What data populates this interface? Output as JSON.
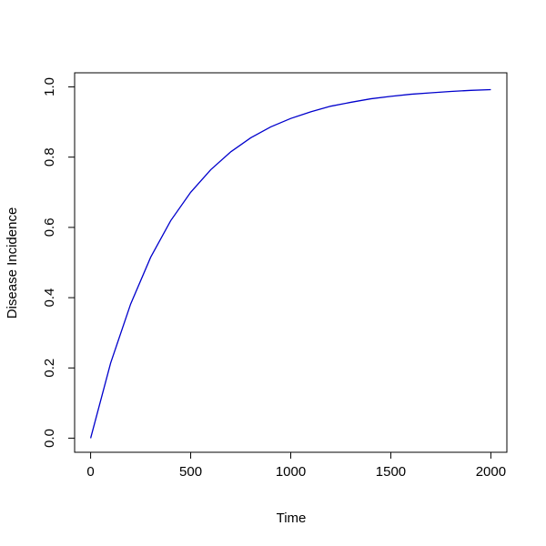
{
  "chart_data": {
    "type": "line",
    "x_label": "Time",
    "y_label": "Disease Incidence",
    "x": [
      0,
      100,
      200,
      300,
      400,
      500,
      600,
      700,
      800,
      900,
      1000,
      1100,
      1200,
      1300,
      1400,
      1500,
      1600,
      1700,
      1800,
      1900,
      2000
    ],
    "series": [
      {
        "color": "#0000cc",
        "values": [
          0,
          0.214,
          0.382,
          0.515,
          0.619,
          0.7,
          0.764,
          0.815,
          0.855,
          0.886,
          0.91,
          0.929,
          0.945,
          0.956,
          0.966,
          0.973,
          0.979,
          0.983,
          0.987,
          0.99,
          0.992
        ]
      }
    ],
    "xlim": [
      -80,
      2080
    ],
    "ylim": [
      -0.04,
      1.04
    ],
    "xticks": [
      0,
      500,
      1000,
      1500,
      2000
    ],
    "yticks": [
      {
        "value": 0,
        "label": "0.0"
      },
      0.2,
      0.4,
      0.6,
      0.8,
      {
        "value": 1,
        "label": "1.0"
      }
    ]
  }
}
